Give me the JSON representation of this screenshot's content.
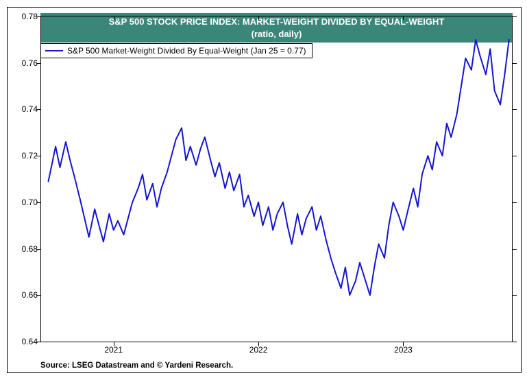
{
  "chart": {
    "type": "line",
    "title_line1": "S&P 500 STOCK PRICE INDEX: MARKET-WEIGHT DIVIDED BY EQUAL-WEIGHT",
    "title_line2": "(ratio, daily)",
    "title_fontsize": 13,
    "title_banner_bg": "#3a8679",
    "title_text_color": "#ffffff",
    "legend_label": "S&P 500 Market-Weight Divided By Equal-Weight (Jan 25 = 0.77)",
    "legend_fontsize": 12,
    "source_text": "Source: LSEG Datastream and © Yardeni Research.",
    "source_fontsize": 11.5,
    "background_color": "#ffffff",
    "border_color": "#000000",
    "line_color": "#1414d2",
    "line_width": 2,
    "y_axis": {
      "min": 0.64,
      "max": 0.78,
      "tick_step": 0.02,
      "ticks": [
        0.64,
        0.66,
        0.68,
        0.7,
        0.72,
        0.74,
        0.76,
        0.78
      ],
      "tick_labels": [
        "0.64",
        "0.66",
        "0.68",
        "0.70",
        "0.72",
        "0.74",
        "0.76",
        "0.78"
      ],
      "label_fontsize": 12
    },
    "x_axis": {
      "start_year": 2020.5,
      "end_year": 2023.75,
      "major_ticks": [
        2021,
        2022,
        2023
      ],
      "tick_labels": [
        "2021",
        "2022",
        "2023"
      ],
      "label_fontsize": 12
    },
    "series": {
      "x": [
        2020.55,
        2020.6,
        2020.63,
        2020.67,
        2020.7,
        2020.73,
        2020.77,
        2020.8,
        2020.83,
        2020.87,
        2020.9,
        2020.93,
        2020.97,
        2021.0,
        2021.03,
        2021.07,
        2021.1,
        2021.13,
        2021.17,
        2021.2,
        2021.23,
        2021.27,
        2021.3,
        2021.33,
        2021.37,
        2021.4,
        2021.43,
        2021.47,
        2021.5,
        2021.53,
        2021.57,
        2021.6,
        2021.63,
        2021.67,
        2021.7,
        2021.73,
        2021.77,
        2021.8,
        2021.83,
        2021.87,
        2021.9,
        2021.93,
        2021.97,
        2022.0,
        2022.03,
        2022.07,
        2022.1,
        2022.13,
        2022.17,
        2022.2,
        2022.23,
        2022.27,
        2022.3,
        2022.33,
        2022.37,
        2022.4,
        2022.43,
        2022.47,
        2022.5,
        2022.53,
        2022.57,
        2022.6,
        2022.63,
        2022.67,
        2022.7,
        2022.73,
        2022.77,
        2022.8,
        2022.83,
        2022.87,
        2022.9,
        2022.93,
        2022.97,
        2023.0,
        2023.03,
        2023.07,
        2023.1,
        2023.13,
        2023.17,
        2023.2,
        2023.23,
        2023.27,
        2023.3,
        2023.33,
        2023.37,
        2023.4,
        2023.43,
        2023.47,
        2023.5,
        2023.53,
        2023.57,
        2023.6,
        2023.63,
        2023.67,
        2023.7,
        2023.73
      ],
      "y": [
        0.709,
        0.724,
        0.715,
        0.726,
        0.718,
        0.711,
        0.701,
        0.693,
        0.685,
        0.697,
        0.69,
        0.683,
        0.695,
        0.688,
        0.692,
        0.686,
        0.693,
        0.7,
        0.706,
        0.712,
        0.701,
        0.708,
        0.698,
        0.706,
        0.713,
        0.72,
        0.727,
        0.732,
        0.718,
        0.724,
        0.716,
        0.723,
        0.728,
        0.718,
        0.711,
        0.717,
        0.706,
        0.713,
        0.705,
        0.712,
        0.698,
        0.703,
        0.694,
        0.7,
        0.69,
        0.698,
        0.688,
        0.695,
        0.7,
        0.69,
        0.682,
        0.695,
        0.686,
        0.693,
        0.698,
        0.688,
        0.694,
        0.683,
        0.676,
        0.67,
        0.663,
        0.672,
        0.66,
        0.666,
        0.674,
        0.668,
        0.66,
        0.672,
        0.682,
        0.676,
        0.69,
        0.7,
        0.694,
        0.688,
        0.696,
        0.706,
        0.698,
        0.712,
        0.72,
        0.714,
        0.726,
        0.72,
        0.734,
        0.728,
        0.738,
        0.75,
        0.762,
        0.757,
        0.77,
        0.763,
        0.755,
        0.766,
        0.748,
        0.742,
        0.755,
        0.77
      ]
    }
  }
}
